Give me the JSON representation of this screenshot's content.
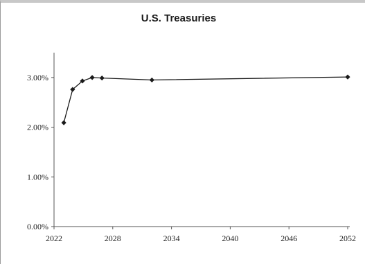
{
  "chart_data": {
    "type": "line",
    "title": "U.S. Treasuries",
    "xlabel": "",
    "ylabel": "",
    "xlim": [
      2022,
      2052
    ],
    "ylim": [
      0,
      3.5
    ],
    "x_ticks": [
      2022,
      2028,
      2034,
      2040,
      2046,
      2052
    ],
    "x_tick_labels": [
      "2022",
      "2028",
      "2034",
      "2040",
      "2046",
      "2052"
    ],
    "y_ticks": [
      0,
      1,
      2,
      3
    ],
    "y_tick_labels": [
      "0.00%",
      "1.00%",
      "2.00%",
      "3.00%"
    ],
    "grid": false,
    "legend": "none",
    "series": [
      {
        "color": "#1a1a1a",
        "marker": "diamond",
        "x": [
          2023.0,
          2023.9,
          2024.9,
          2025.9,
          2026.9,
          2032.0,
          2052.0
        ],
        "y": [
          2.09,
          2.76,
          2.93,
          3.0,
          2.99,
          2.95,
          3.01
        ]
      }
    ]
  }
}
